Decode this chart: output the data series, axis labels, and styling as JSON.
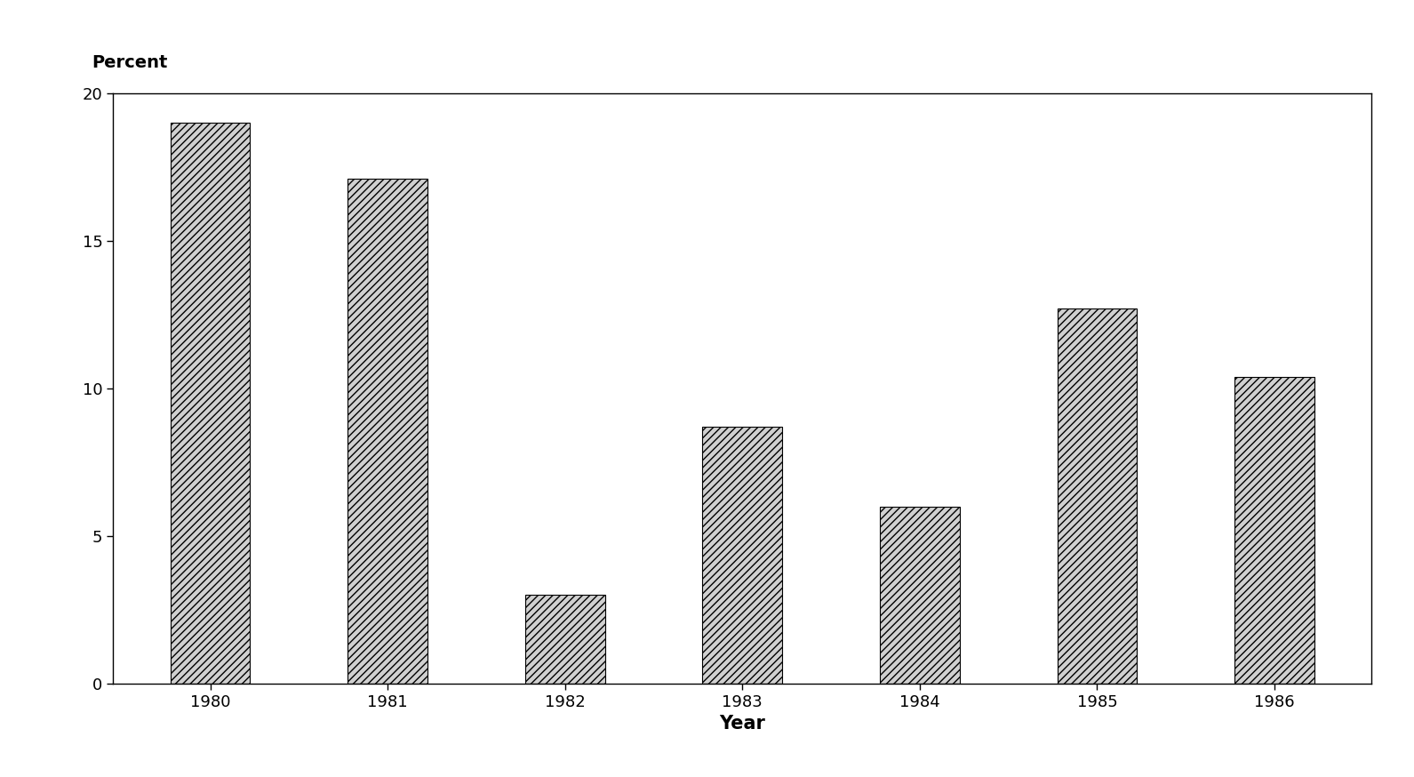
{
  "categories": [
    "1980",
    "1981",
    "1982",
    "1983",
    "1984",
    "1985",
    "1986"
  ],
  "values": [
    19.0,
    17.1,
    3.0,
    8.7,
    6.0,
    12.7,
    10.4
  ],
  "bar_color": "#d0d0d0",
  "hatch_pattern": "////",
  "ylabel": "Percent",
  "xlabel": "Year",
  "ylim": [
    0,
    20
  ],
  "yticks": [
    0,
    5,
    10,
    15,
    20
  ],
  "background_color": "#ffffff",
  "bar_edge_color": "#000000",
  "bar_linewidth": 0.8,
  "ylabel_fontsize": 14,
  "xlabel_fontsize": 15,
  "tick_fontsize": 13,
  "xlabel_fontweight": "bold",
  "bar_width": 0.45
}
